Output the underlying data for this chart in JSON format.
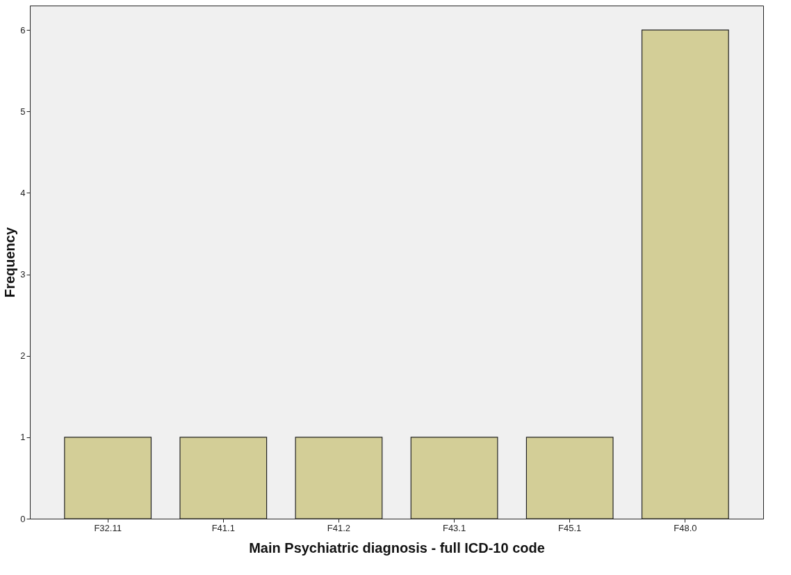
{
  "chart_data": {
    "type": "bar",
    "xlabel": "Main Psychiatric diagnosis - full ICD-10 code",
    "ylabel": "Frequency",
    "categories": [
      "F32.11",
      "F41.1",
      "F41.2",
      "F43.1",
      "F45.1",
      "F48.0"
    ],
    "values": [
      1,
      1,
      1,
      1,
      1,
      6
    ],
    "color": "#d3ce97",
    "ylim": [
      0,
      6.3
    ],
    "yticks": [
      0,
      1,
      2,
      3,
      4,
      5,
      6
    ]
  }
}
